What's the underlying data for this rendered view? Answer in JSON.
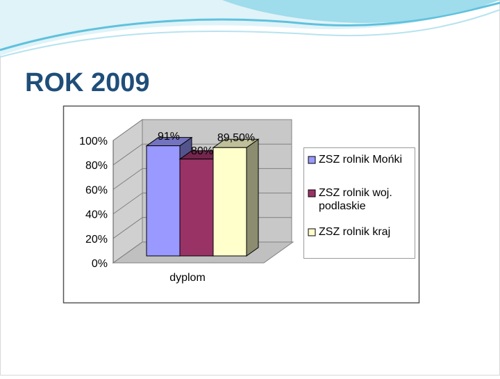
{
  "chart_data": {
    "type": "bar",
    "title": "ROK 2009",
    "categories": [
      "dyplom"
    ],
    "series": [
      {
        "name": "ZSZ rolnik Mońki",
        "color": "#9999ff",
        "values": [
          91
        ],
        "value_labels": [
          "91%"
        ]
      },
      {
        "name": "ZSZ rolnik woj. podlaskie",
        "color": "#993366",
        "values": [
          80
        ],
        "value_labels": [
          "80%"
        ]
      },
      {
        "name": "ZSZ rolnik kraj",
        "color": "#ffffcc",
        "values": [
          89.5
        ],
        "value_labels": [
          "89,50%"
        ]
      }
    ],
    "ylim": [
      0,
      100
    ],
    "yticks": [
      {
        "value": 0,
        "label": "0%"
      },
      {
        "value": 20,
        "label": "20%"
      },
      {
        "value": 40,
        "label": "40%"
      },
      {
        "value": 60,
        "label": "60%"
      },
      {
        "value": 80,
        "label": "80%"
      },
      {
        "value": 100,
        "label": "100%"
      }
    ],
    "grid": true,
    "legend": "right"
  }
}
